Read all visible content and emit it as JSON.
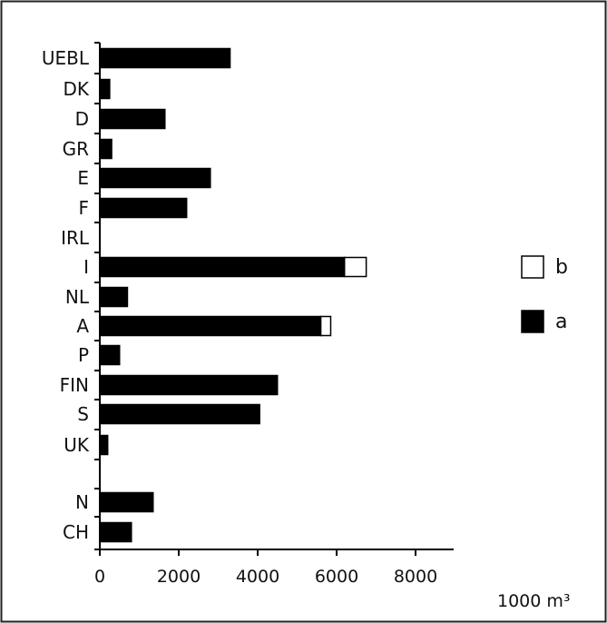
{
  "chart_data": {
    "type": "bar",
    "orientation": "horizontal",
    "stacked": true,
    "title": "",
    "xlabel": "1000 m³",
    "ylabel": "",
    "xlim": [
      0,
      9000
    ],
    "xticks": [
      0,
      2000,
      4000,
      6000,
      8000
    ],
    "xtick_labels": [
      "0",
      "2000",
      "4000",
      "6000",
      "8000"
    ],
    "grid": false,
    "legend_position": "right",
    "categories": [
      "UEBL",
      "DK",
      "D",
      "GR",
      "E",
      "F",
      "IRL",
      "I",
      "NL",
      "A",
      "P",
      "FIN",
      "S",
      "UK",
      "N",
      "CH"
    ],
    "series": [
      {
        "name": "a",
        "color": "#000000",
        "values": [
          3300,
          250,
          1650,
          300,
          2800,
          2200,
          0,
          6200,
          700,
          5600,
          500,
          4500,
          4050,
          200,
          1350,
          800
        ]
      },
      {
        "name": "b",
        "color": "#ffffff",
        "values": [
          0,
          0,
          0,
          0,
          0,
          0,
          0,
          550,
          0,
          250,
          0,
          0,
          0,
          0,
          0,
          0
        ]
      }
    ],
    "legend": [
      {
        "label": "b",
        "color": "#ffffff"
      },
      {
        "label": "a",
        "color": "#000000"
      }
    ]
  }
}
